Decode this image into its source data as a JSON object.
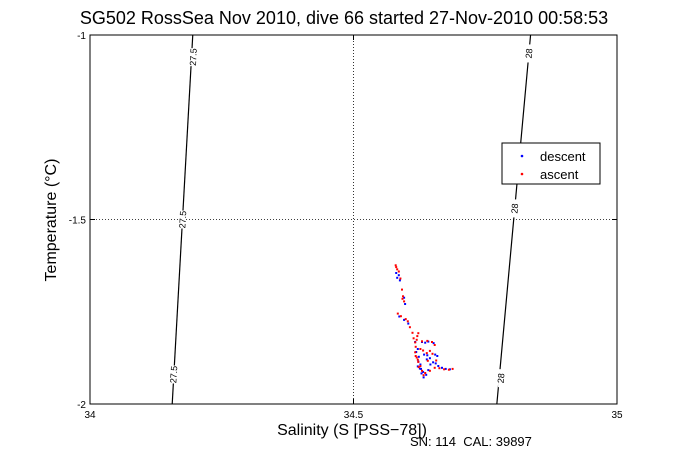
{
  "chart_data": {
    "type": "scatter",
    "title": "SG502 RossSea Nov 2010, dive 66 started 27-Nov-2010 00:58:53",
    "xlabel": "Salinity (S [PSS−78])",
    "ylabel": "Temperature (°C)",
    "xlim": [
      34,
      35
    ],
    "ylim": [
      -2,
      -1
    ],
    "x_ticks": [
      34,
      34.5,
      35
    ],
    "y_ticks": [
      -2,
      -1.5,
      -1
    ],
    "x_tick_labels": [
      "34",
      "34.5",
      "35"
    ],
    "y_tick_labels": [
      "-2",
      "-1.5",
      "-1"
    ],
    "grid": "dotted",
    "legend_position": "right",
    "footer": "SN: 114  CAL: 39897",
    "contours": [
      {
        "label": "27.5",
        "points": [
          [
            34.156,
            -2.0
          ],
          [
            34.195,
            -1.0
          ]
        ],
        "label_positions": [
          [
            34.196,
            -1.06
          ],
          [
            34.176,
            -1.5
          ],
          [
            34.159,
            -1.92
          ]
        ]
      },
      {
        "label": "28",
        "points": [
          [
            34.772,
            -2.0
          ],
          [
            34.836,
            -1.0
          ]
        ],
        "label_positions": [
          [
            34.833,
            -1.05
          ],
          [
            34.806,
            -1.47
          ],
          [
            34.78,
            -1.93
          ]
        ]
      }
    ],
    "series": [
      {
        "name": "descent",
        "color": "#0000ff",
        "points": [
          [
            34.581,
            -1.645
          ],
          [
            34.586,
            -1.651
          ],
          [
            34.588,
            -1.665
          ],
          [
            34.583,
            -1.658
          ],
          [
            34.596,
            -1.712
          ],
          [
            34.598,
            -1.729
          ],
          [
            34.587,
            -1.763
          ],
          [
            34.596,
            -1.772
          ],
          [
            34.604,
            -1.782
          ],
          [
            34.617,
            -1.832
          ],
          [
            34.622,
            -1.851
          ],
          [
            34.619,
            -1.859
          ],
          [
            34.624,
            -1.872
          ],
          [
            34.627,
            -1.893
          ],
          [
            34.626,
            -1.904
          ],
          [
            34.629,
            -1.917
          ],
          [
            34.633,
            -1.928
          ],
          [
            34.638,
            -1.921
          ],
          [
            34.642,
            -1.908
          ],
          [
            34.646,
            -1.893
          ],
          [
            34.651,
            -1.887
          ],
          [
            34.656,
            -1.89
          ],
          [
            34.661,
            -1.897
          ],
          [
            34.668,
            -1.902
          ],
          [
            34.675,
            -1.905
          ],
          [
            34.683,
            -1.906
          ],
          [
            34.63,
            -1.832
          ],
          [
            34.636,
            -1.834
          ],
          [
            34.642,
            -1.831
          ],
          [
            34.652,
            -1.835
          ],
          [
            34.634,
            -1.866
          ],
          [
            34.639,
            -1.879
          ],
          [
            34.623,
            -1.885
          ],
          [
            34.622,
            -1.898
          ],
          [
            34.628,
            -1.905
          ],
          [
            34.632,
            -1.913
          ],
          [
            34.659,
            -1.87
          ],
          [
            34.655,
            -1.866
          ],
          [
            34.64,
            -1.868
          ],
          [
            34.645,
            -1.876
          ]
        ]
      },
      {
        "name": "ascent",
        "color": "#ff0000",
        "points": [
          [
            34.58,
            -1.624
          ],
          [
            34.581,
            -1.629
          ],
          [
            34.583,
            -1.635
          ],
          [
            34.586,
            -1.641
          ],
          [
            34.589,
            -1.66
          ],
          [
            34.592,
            -1.69
          ],
          [
            34.594,
            -1.708
          ],
          [
            34.596,
            -1.722
          ],
          [
            34.593,
            -1.715
          ],
          [
            34.584,
            -1.755
          ],
          [
            34.59,
            -1.762
          ],
          [
            34.599,
            -1.77
          ],
          [
            34.603,
            -1.776
          ],
          [
            34.607,
            -1.792
          ],
          [
            34.612,
            -1.807
          ],
          [
            34.614,
            -1.822
          ],
          [
            34.617,
            -1.833
          ],
          [
            34.62,
            -1.826
          ],
          [
            34.618,
            -1.845
          ],
          [
            34.617,
            -1.86
          ],
          [
            34.62,
            -1.874
          ],
          [
            34.623,
            -1.886
          ],
          [
            34.627,
            -1.897
          ],
          [
            34.63,
            -1.91
          ],
          [
            34.636,
            -1.916
          ],
          [
            34.645,
            -1.91
          ],
          [
            34.654,
            -1.902
          ],
          [
            34.663,
            -1.903
          ],
          [
            34.672,
            -1.906
          ],
          [
            34.681,
            -1.907
          ],
          [
            34.688,
            -1.905
          ],
          [
            34.63,
            -1.83
          ],
          [
            34.64,
            -1.829
          ],
          [
            34.649,
            -1.832
          ],
          [
            34.654,
            -1.84
          ],
          [
            34.632,
            -1.855
          ],
          [
            34.639,
            -1.862
          ],
          [
            34.627,
            -1.851
          ],
          [
            34.641,
            -1.883
          ],
          [
            34.618,
            -1.87
          ],
          [
            34.621,
            -1.816
          ],
          [
            34.623,
            -1.808
          ],
          [
            34.645,
            -1.856
          ],
          [
            34.65,
            -1.864
          ],
          [
            34.657,
            -1.882
          ],
          [
            34.624,
            -1.9
          ],
          [
            34.633,
            -1.922
          ],
          [
            34.622,
            -1.88
          ]
        ]
      }
    ]
  }
}
